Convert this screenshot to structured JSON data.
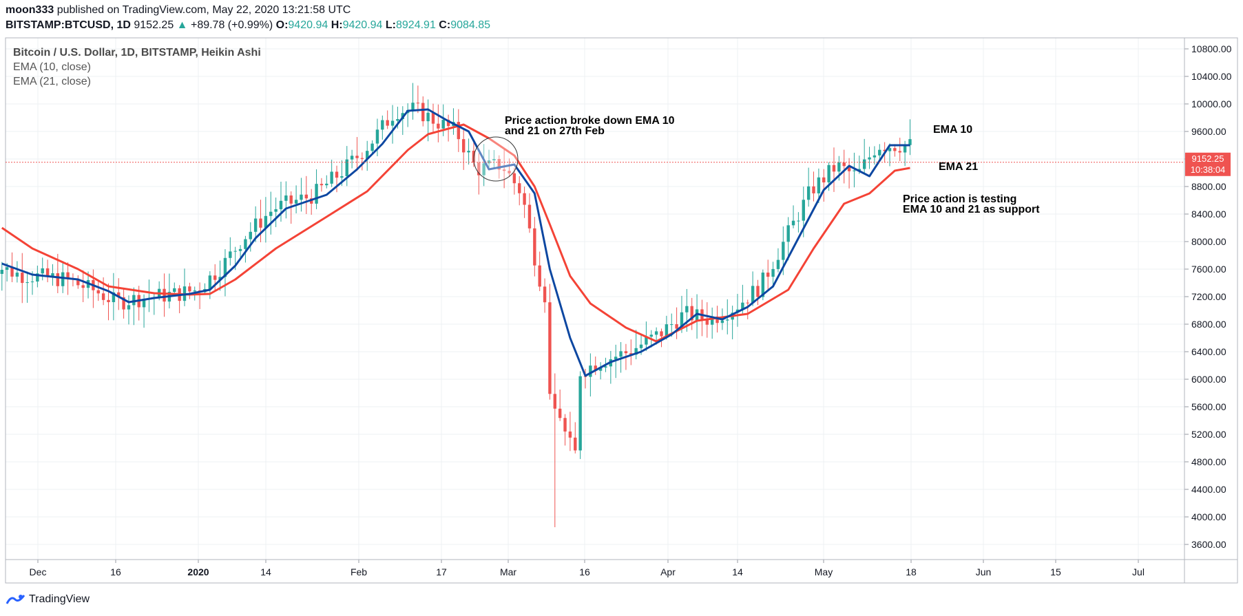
{
  "header": {
    "publisher_line_user": "moon333",
    "publisher_line_rest": " published on TradingView.com, May 22, 2020 13:21:58 UTC",
    "symbol": "BITSTAMP:BTCUSD, 1D",
    "last": "9152.25",
    "change": "+89.78 (+0.99%)",
    "o_label": "O:",
    "o": "9420.94",
    "h_label": "H:",
    "h": "9420.94",
    "l_label": "L:",
    "l": "8924.91",
    "c_label": "C:",
    "c": "9084.85"
  },
  "legend": {
    "series_title": "Bitcoin / U.S. Dollar, 1D, BITSTAMP, Heikin Ashi",
    "ema10": "EMA (10, close)",
    "ema21": "EMA (21, close)"
  },
  "annotations": {
    "breakdown_line1": "Price action broke down EMA 10",
    "breakdown_line2": "and 21 on 27th Feb",
    "ema10_label": "EMA 10",
    "ema21_label": "EMA 21",
    "support_line1": "Price action is testing",
    "support_line2": "EMA 10 and 21 as support"
  },
  "price_tag": {
    "price": "9152.25",
    "countdown": "10:38:04"
  },
  "footer": {
    "brand": "TradingView"
  },
  "colors": {
    "up": "#26a69a",
    "down": "#ef5350",
    "ema10": "#0d47a1",
    "ema21": "#f44336",
    "price_tag": "#ef5350"
  },
  "chart_data": {
    "type": "candlestick",
    "title": "Bitcoin / U.S. Dollar, 1D, BITSTAMP, Heikin Ashi",
    "x_ticks": [
      "Dec",
      "16",
      "2020",
      "14",
      "Feb",
      "17",
      "Mar",
      "16",
      "Apr",
      "14",
      "May",
      "18",
      "Jun",
      "15",
      "Jul"
    ],
    "y_ticks": [
      3600,
      4000,
      4400,
      4800,
      5200,
      5600,
      6000,
      6400,
      6800,
      7200,
      7600,
      8000,
      8400,
      8800,
      9200,
      9600,
      10000,
      10400,
      10800
    ],
    "ylim": [
      3380,
      10960
    ],
    "last_price": 9152.25,
    "series": [
      {
        "name": "EMA (10, close)",
        "points": [
          [
            "2019-11-25",
            7680
          ],
          [
            "2019-12-01",
            7520
          ],
          [
            "2019-12-10",
            7450
          ],
          [
            "2019-12-16",
            7280
          ],
          [
            "2019-12-20",
            7120
          ],
          [
            "2019-12-25",
            7180
          ],
          [
            "2020-01-01",
            7240
          ],
          [
            "2020-01-05",
            7300
          ],
          [
            "2020-01-10",
            7650
          ],
          [
            "2020-01-14",
            8050
          ],
          [
            "2020-01-20",
            8480
          ],
          [
            "2020-01-28",
            8680
          ],
          [
            "2020-02-03",
            9050
          ],
          [
            "2020-02-08",
            9420
          ],
          [
            "2020-02-13",
            9900
          ],
          [
            "2020-02-17",
            9920
          ],
          [
            "2020-02-21",
            9750
          ],
          [
            "2020-02-25",
            9600
          ],
          [
            "2020-02-29",
            9050
          ],
          [
            "2020-03-05",
            9120
          ],
          [
            "2020-03-09",
            8700
          ],
          [
            "2020-03-12",
            7600
          ],
          [
            "2020-03-16",
            6600
          ],
          [
            "2020-03-19",
            6050
          ],
          [
            "2020-03-24",
            6250
          ],
          [
            "2020-03-30",
            6400
          ],
          [
            "2020-04-05",
            6650
          ],
          [
            "2020-04-10",
            6950
          ],
          [
            "2020-04-15",
            6870
          ],
          [
            "2020-04-20",
            7050
          ],
          [
            "2020-04-25",
            7350
          ],
          [
            "2020-04-30",
            8050
          ],
          [
            "2020-05-05",
            8750
          ],
          [
            "2020-05-10",
            9100
          ],
          [
            "2020-05-14",
            8950
          ],
          [
            "2020-05-18",
            9400
          ],
          [
            "2020-05-22",
            9400
          ]
        ]
      },
      {
        "name": "EMA (21, close)",
        "points": [
          [
            "2019-11-25",
            8200
          ],
          [
            "2019-12-01",
            7900
          ],
          [
            "2019-12-10",
            7600
          ],
          [
            "2019-12-16",
            7350
          ],
          [
            "2019-12-25",
            7250
          ],
          [
            "2020-01-01",
            7230
          ],
          [
            "2020-01-05",
            7240
          ],
          [
            "2020-01-10",
            7450
          ],
          [
            "2020-01-18",
            7900
          ],
          [
            "2020-01-28",
            8360
          ],
          [
            "2020-02-05",
            8730
          ],
          [
            "2020-02-13",
            9330
          ],
          [
            "2020-02-17",
            9560
          ],
          [
            "2020-02-24",
            9700
          ],
          [
            "2020-02-29",
            9500
          ],
          [
            "2020-03-05",
            9250
          ],
          [
            "2020-03-09",
            8800
          ],
          [
            "2020-03-12",
            8250
          ],
          [
            "2020-03-16",
            7500
          ],
          [
            "2020-03-20",
            7100
          ],
          [
            "2020-03-27",
            6750
          ],
          [
            "2020-04-02",
            6550
          ],
          [
            "2020-04-10",
            6850
          ],
          [
            "2020-04-15",
            6900
          ],
          [
            "2020-04-20",
            6950
          ],
          [
            "2020-04-28",
            7300
          ],
          [
            "2020-05-03",
            7900
          ],
          [
            "2020-05-09",
            8550
          ],
          [
            "2020-05-14",
            8700
          ],
          [
            "2020-05-19",
            9030
          ],
          [
            "2020-05-22",
            9070
          ]
        ]
      }
    ]
  }
}
